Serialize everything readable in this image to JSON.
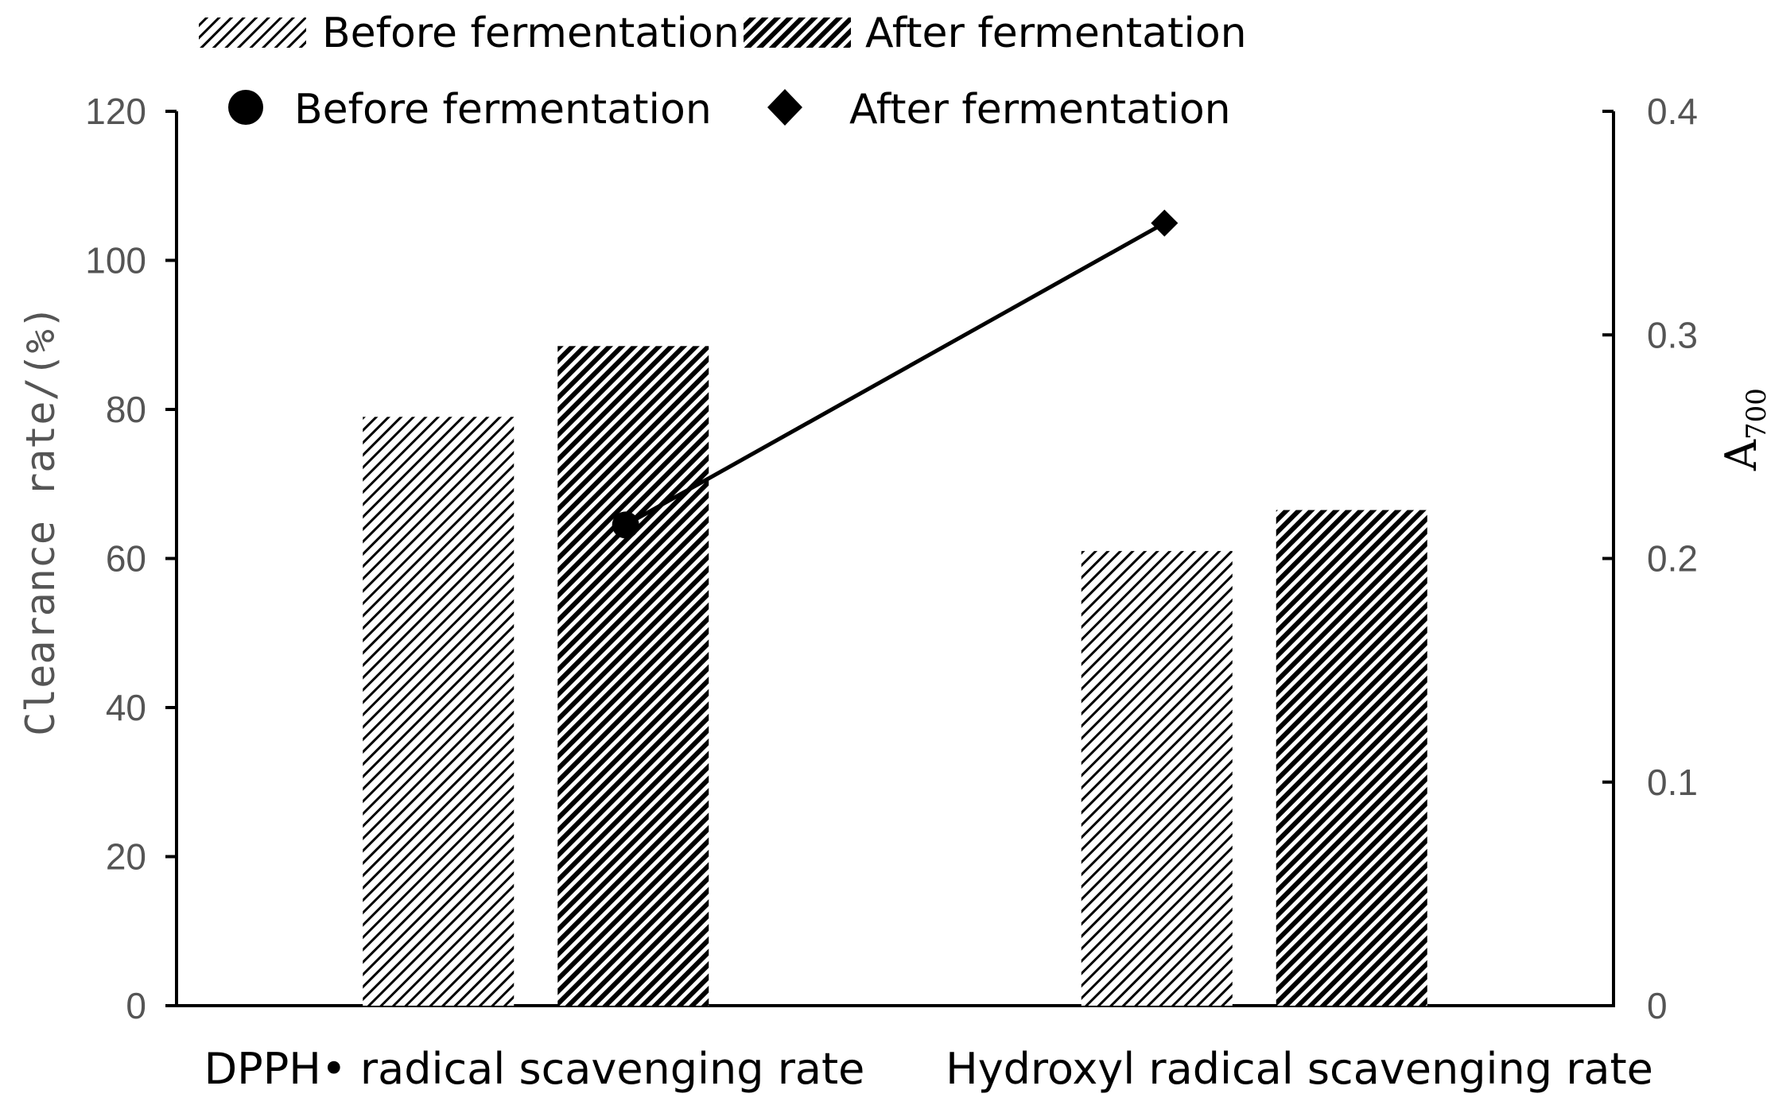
{
  "chart_data": {
    "type": "bar",
    "categories": [
      "DPPH• radical scavenging rate",
      "Hydroxyl radical scavenging rate"
    ],
    "series": [
      {
        "name": "Before fermentation",
        "kind": "bar",
        "axis": "left",
        "pattern": "light-hatch",
        "values": [
          79,
          61
        ]
      },
      {
        "name": "After fermentation",
        "kind": "bar",
        "axis": "left",
        "pattern": "dark-hatch",
        "values": [
          88.5,
          66.5
        ]
      },
      {
        "name": "A700",
        "kind": "line",
        "axis": "right",
        "x": [
          1.25,
          2.75
        ],
        "values": [
          0.215,
          0.35
        ],
        "marker_start": "circle",
        "marker_end": "diamond"
      }
    ],
    "legend": {
      "bars": [
        "Before fermentation",
        "After fermentation"
      ],
      "markers": [
        {
          "label": "Before fermentation",
          "marker": "circle"
        },
        {
          "label": "After fermentation",
          "marker": "diamond"
        }
      ],
      "position": "top"
    },
    "ylabel": "Clearance rate/(%)",
    "ylabel_right": {
      "main": "A",
      "sub": "700"
    },
    "ylim": [
      0,
      120
    ],
    "yticks": [
      "0",
      "20",
      "40",
      "60",
      "80",
      "100",
      "120"
    ],
    "ylim_right": [
      0,
      0.4
    ],
    "yticks_right": [
      "0",
      "0.1",
      "0.2",
      "0.3",
      "0.4"
    ],
    "grid": false,
    "colors": {
      "axis": "#000000",
      "tick_text": "#555555",
      "hatch": "#000000"
    }
  }
}
